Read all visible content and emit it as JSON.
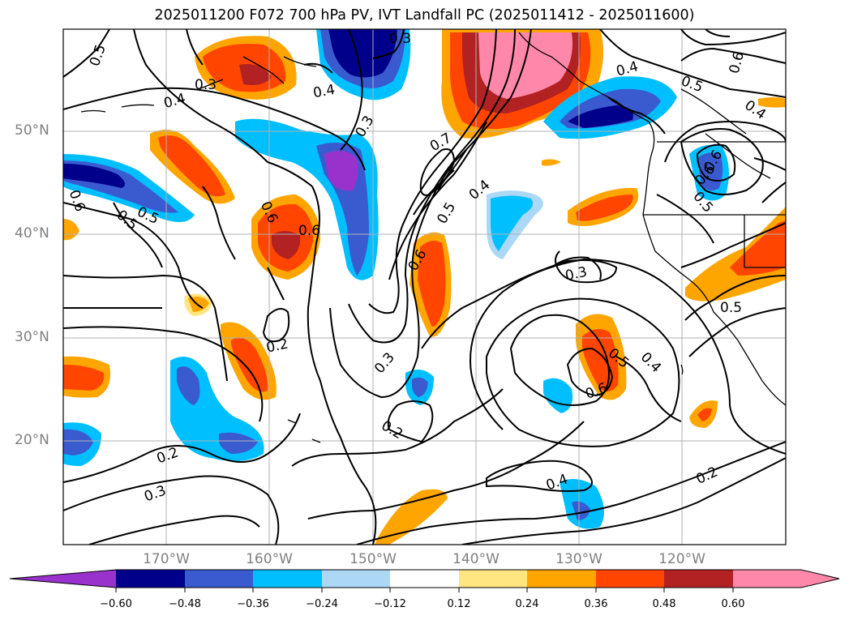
{
  "title": "2025011200 F072 700 hPa PV, IVT Landfall PC (2025011412 - 2025011600)",
  "map": {
    "lat_labels": [
      "50°N",
      "40°N",
      "30°N",
      "20°N"
    ],
    "lon_labels": [
      "170°W",
      "160°W",
      "150°W",
      "140°W",
      "130°W",
      "120°W"
    ],
    "contour_labels": [
      "0.5",
      "0.3",
      "0.4",
      "0.3",
      "0.4",
      "0.3",
      "0.4",
      "0.5",
      "0.6",
      "0.4",
      "0.7",
      "0.6",
      "0.5",
      "0.5",
      "0.6",
      "0.6",
      "0.4",
      "0.6",
      "0.5",
      "0.6",
      "0.5",
      "0.6",
      "0.3",
      "0.2",
      "0.3",
      "0.2",
      "0.5",
      "0.4",
      "0.6",
      "0.2",
      "0.3",
      "0.4",
      "0.2",
      "0.5"
    ]
  },
  "colorbar": {
    "ticks": [
      "−0.60",
      "−0.48",
      "−0.36",
      "−0.24",
      "−0.12",
      "0.12",
      "0.24",
      "0.36",
      "0.48",
      "0.60"
    ],
    "colors": [
      "#9932cc",
      "#00008b",
      "#3a5bd0",
      "#00bfff",
      "#add8f5",
      "#ffffff",
      "#ffe680",
      "#ffa500",
      "#ff4500",
      "#b22222",
      "#ff88aa"
    ]
  }
}
